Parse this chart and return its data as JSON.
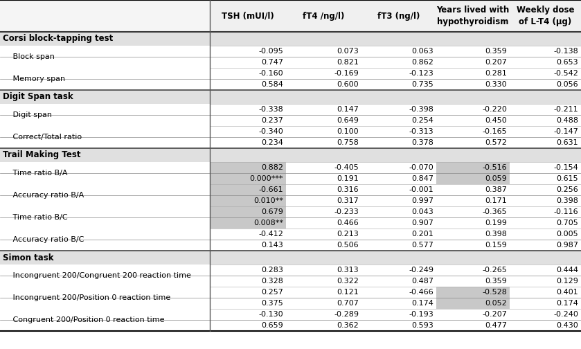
{
  "col_headers_line1": [
    "TSH (mUI/l)",
    "fT4 /ng/l)",
    "fT3 (ng/l)",
    "Years lived with",
    "Weekly dose"
  ],
  "col_headers_line2": [
    "",
    "",
    "",
    "hypothyroidism",
    "of L-T4 (μg)"
  ],
  "sections": [
    {
      "section_name": "Corsi block-tapping test",
      "rows": [
        {
          "label": "   Block span",
          "r": [
            "-0.095",
            "0.073",
            "0.063",
            "0.359",
            "-0.138"
          ],
          "p": [
            "0.747",
            "0.821",
            "0.862",
            "0.207",
            "0.653"
          ],
          "highlight_r": [
            false,
            false,
            false,
            false,
            false
          ],
          "highlight_p": [
            false,
            false,
            false,
            false,
            false
          ]
        },
        {
          "label": "   Memory span",
          "r": [
            "-0.160",
            "-0.169",
            "-0.123",
            "0.281",
            "-0.542"
          ],
          "p": [
            "0.584",
            "0.600",
            "0.735",
            "0.330",
            "0.056"
          ],
          "highlight_r": [
            false,
            false,
            false,
            false,
            false
          ],
          "highlight_p": [
            false,
            false,
            false,
            false,
            false
          ]
        }
      ]
    },
    {
      "section_name": "Digit Span task",
      "rows": [
        {
          "label": "   Digit span",
          "r": [
            "-0.338",
            "0.147",
            "-0.398",
            "-0.220",
            "-0.211"
          ],
          "p": [
            "0.237",
            "0.649",
            "0.254",
            "0.450",
            "0.488"
          ],
          "highlight_r": [
            false,
            false,
            false,
            false,
            false
          ],
          "highlight_p": [
            false,
            false,
            false,
            false,
            false
          ]
        },
        {
          "label": "   Correct/Total ratio",
          "r": [
            "-0.340",
            "0.100",
            "-0.313",
            "-0.165",
            "-0.147"
          ],
          "p": [
            "0.234",
            "0.758",
            "0.378",
            "0.572",
            "0.631"
          ],
          "highlight_r": [
            false,
            false,
            false,
            false,
            false
          ],
          "highlight_p": [
            false,
            false,
            false,
            false,
            false
          ]
        }
      ]
    },
    {
      "section_name": "Trail Making Test",
      "rows": [
        {
          "label": "   Time ratio B/A",
          "r": [
            "0.882",
            "-0.405",
            "-0.070",
            "-0.516",
            "-0.154"
          ],
          "p": [
            "0.000***",
            "0.191",
            "0.847",
            "0.059",
            "0.615"
          ],
          "highlight_r": [
            true,
            false,
            false,
            true,
            false
          ],
          "highlight_p": [
            true,
            false,
            false,
            true,
            false
          ]
        },
        {
          "label": "   Accuracy ratio B/A",
          "r": [
            "-0.661",
            "0.316",
            "-0.001",
            "0.387",
            "0.256"
          ],
          "p": [
            "0.010**",
            "0.317",
            "0.997",
            "0.171",
            "0.398"
          ],
          "highlight_r": [
            true,
            false,
            false,
            false,
            false
          ],
          "highlight_p": [
            true,
            false,
            false,
            false,
            false
          ]
        },
        {
          "label": "   Time ratio B/C",
          "r": [
            "0.679",
            "-0.233",
            "0.043",
            "-0.365",
            "-0.116"
          ],
          "p": [
            "0.008**",
            "0.466",
            "0.907",
            "0.199",
            "0.705"
          ],
          "highlight_r": [
            true,
            false,
            false,
            false,
            false
          ],
          "highlight_p": [
            true,
            false,
            false,
            false,
            false
          ]
        },
        {
          "label": "   Accuracy ratio B/C",
          "r": [
            "-0.412",
            "0.213",
            "0.201",
            "0.398",
            "0.005"
          ],
          "p": [
            "0.143",
            "0.506",
            "0.577",
            "0.159",
            "0.987"
          ],
          "highlight_r": [
            false,
            false,
            false,
            false,
            false
          ],
          "highlight_p": [
            false,
            false,
            false,
            false,
            false
          ]
        }
      ]
    },
    {
      "section_name": "Simon task",
      "rows": [
        {
          "label": "   Incongruent 200/Congruent 200 reaction time",
          "r": [
            "0.283",
            "0.313",
            "-0.249",
            "-0.265",
            "0.444"
          ],
          "p": [
            "0.328",
            "0.322",
            "0.487",
            "0.359",
            "0.129"
          ],
          "highlight_r": [
            false,
            false,
            false,
            false,
            false
          ],
          "highlight_p": [
            false,
            false,
            false,
            false,
            false
          ]
        },
        {
          "label": "   Incongruent 200/Position 0 reaction time",
          "r": [
            "0.257",
            "0.121",
            "-0.466",
            "-0.528",
            "0.401"
          ],
          "p": [
            "0.375",
            "0.707",
            "0.174",
            "0.052",
            "0.174"
          ],
          "highlight_r": [
            false,
            false,
            false,
            true,
            false
          ],
          "highlight_p": [
            false,
            false,
            false,
            true,
            false
          ]
        },
        {
          "label": "   Congruent 200/Position 0 reaction time",
          "r": [
            "-0.130",
            "-0.289",
            "-0.193",
            "-0.207",
            "-0.240"
          ],
          "p": [
            "0.659",
            "0.362",
            "0.593",
            "0.477",
            "0.430"
          ],
          "highlight_r": [
            false,
            false,
            false,
            false,
            false
          ],
          "highlight_p": [
            false,
            false,
            false,
            false,
            false
          ]
        }
      ]
    }
  ],
  "highlight_color": "#c8c8c8",
  "section_bg": "#e0e0e0",
  "header_bg": "#f0f0f0"
}
